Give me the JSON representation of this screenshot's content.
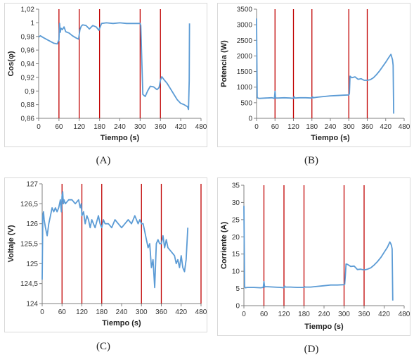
{
  "charts": [
    {
      "id": "A",
      "caption": "(A)",
      "chart_data": {
        "type": "line",
        "xlabel": "Tiempo (s)",
        "ylabel": "Cos(φ)",
        "xlim": [
          0,
          480
        ],
        "ylim": [
          0.86,
          1.02
        ],
        "xticks": [
          "0",
          "60",
          "120",
          "180",
          "240",
          "300",
          "360",
          "420",
          "480"
        ],
        "yticks": [
          "0,86",
          "0,88",
          "0,9",
          "0,92",
          "0,94",
          "0,96",
          "0,98",
          "1",
          "1,02"
        ],
        "grid": false,
        "line_color": "#5b9bd5",
        "marker_color": "#c00000",
        "vlines": [
          60,
          120,
          180,
          300,
          360
        ],
        "series": [
          {
            "x": [
              0,
              5,
              15,
              30,
              45,
              55,
              60,
              62,
              64,
              66,
              70,
              75,
              80,
              90,
              100,
              110,
              118,
              122,
              126,
              130,
              140,
              150,
              160,
              170,
              178,
              182,
              186,
              200,
              220,
              240,
              260,
              280,
              300,
              302,
              304,
              308,
              315,
              322,
              330,
              340,
              350,
              356,
              360,
              364,
              370,
              380,
              390,
              400,
              410,
              420,
              430,
              440,
              443,
              445,
              446
            ],
            "y": [
              0.979,
              0.981,
              0.978,
              0.974,
              0.97,
              0.969,
              0.975,
              0.999,
              0.986,
              0.992,
              0.99,
              0.994,
              0.987,
              0.985,
              0.981,
              0.978,
              0.976,
              0.99,
              0.995,
              0.997,
              0.996,
              0.991,
              0.996,
              0.994,
              0.989,
              0.994,
              0.999,
              1.0,
              0.999,
              1.0,
              0.999,
              0.999,
              0.999,
              0.996,
              0.96,
              0.895,
              0.892,
              0.9,
              0.907,
              0.906,
              0.902,
              0.905,
              0.916,
              0.921,
              0.917,
              0.911,
              0.903,
              0.895,
              0.887,
              0.882,
              0.88,
              0.877,
              0.873,
              0.915,
              0.999
            ]
          }
        ]
      }
    },
    {
      "id": "B",
      "caption": "(B)",
      "chart_data": {
        "type": "line",
        "xlabel": "Tiempo (s)",
        "ylabel": "Potencia (W)",
        "xlim": [
          0,
          480
        ],
        "ylim": [
          0,
          3500
        ],
        "xticks": [
          "0",
          "60",
          "120",
          "180",
          "240",
          "300",
          "360",
          "420",
          "480"
        ],
        "yticks": [
          "0",
          "500",
          "1000",
          "1500",
          "2000",
          "2500",
          "3000",
          "3500"
        ],
        "grid": false,
        "line_color": "#5b9bd5",
        "marker_color": "#c00000",
        "vlines": [
          60,
          120,
          180,
          300,
          360
        ],
        "series": [
          {
            "x": [
              0,
              2,
              4,
              10,
              30,
              50,
              58,
              60,
              62,
              70,
              90,
              110,
              120,
              122,
              124,
              140,
              160,
              180,
              182,
              184,
              200,
              220,
              240,
              260,
              280,
              300,
              302,
              304,
              310,
              320,
              330,
              340,
              350,
              360,
              370,
              380,
              390,
              400,
              410,
              420,
              430,
              437,
              440,
              442,
              444,
              446
            ],
            "y": [
              3200,
              680,
              650,
              640,
              650,
              660,
              640,
              870,
              650,
              650,
              660,
              650,
              640,
              700,
              650,
              660,
              660,
              650,
              690,
              660,
              680,
              700,
              720,
              730,
              740,
              750,
              790,
              1350,
              1300,
              1330,
              1250,
              1270,
              1220,
              1220,
              1240,
              1300,
              1400,
              1520,
              1660,
              1800,
              1950,
              2050,
              1950,
              1880,
              1700,
              150
            ]
          }
        ]
      }
    },
    {
      "id": "C",
      "caption": "(C)",
      "chart_data": {
        "type": "line",
        "xlabel": "Tiempo (s)",
        "ylabel": "Voltaje (V)",
        "xlim": [
          0,
          480
        ],
        "ylim": [
          124,
          127
        ],
        "xticks": [
          "0",
          "60",
          "120",
          "180",
          "240",
          "300",
          "360",
          "420",
          "480"
        ],
        "yticks": [
          "124",
          "124,5",
          "125",
          "125,5",
          "126",
          "126,5",
          "127"
        ],
        "grid": false,
        "line_color": "#5b9bd5",
        "marker_color": "#c00000",
        "vlines": [
          60,
          120,
          180,
          300,
          360,
          480
        ],
        "series": [
          {
            "x": [
              0,
              2,
              4,
              6,
              10,
              15,
              20,
              25,
              30,
              35,
              40,
              45,
              50,
              55,
              58,
              60,
              62,
              64,
              66,
              70,
              80,
              90,
              100,
              110,
              115,
              118,
              120,
              125,
              130,
              135,
              140,
              145,
              150,
              160,
              170,
              175,
              180,
              185,
              190,
              200,
              210,
              220,
              230,
              240,
              250,
              260,
              270,
              280,
              290,
              295,
              300,
              305,
              310,
              315,
              320,
              325,
              330,
              335,
              340,
              345,
              350,
              355,
              360,
              365,
              370,
              375,
              380,
              390,
              400,
              405,
              410,
              415,
              420,
              425,
              430,
              435,
              440
            ],
            "y": [
              124.6,
              126.2,
              126.3,
              126.1,
              125.9,
              125.7,
              126.0,
              126.2,
              126.4,
              126.3,
              126.4,
              126.3,
              126.4,
              126.6,
              126.3,
              126.7,
              126.8,
              126.5,
              126.6,
              126.5,
              126.6,
              126.6,
              126.5,
              126.6,
              126.4,
              126.5,
              126.2,
              126.3,
              126.0,
              126.2,
              126.1,
              125.9,
              126.1,
              125.9,
              126.2,
              126.0,
              125.9,
              126.1,
              126.0,
              126.0,
              125.9,
              126.1,
              126.0,
              125.9,
              126.0,
              126.1,
              126.0,
              126.2,
              126.0,
              126.1,
              126.0,
              126.0,
              125.8,
              125.6,
              125.4,
              125.5,
              124.9,
              125.1,
              124.4,
              125.5,
              125.6,
              125.5,
              125.5,
              125.7,
              125.4,
              125.6,
              125.4,
              125.3,
              125.2,
              125.0,
              125.1,
              124.9,
              125.2,
              124.9,
              124.8,
              125.1,
              125.9
            ]
          }
        ]
      }
    },
    {
      "id": "D",
      "caption": "(D)",
      "chart_data": {
        "type": "line",
        "xlabel": "Tiempo (s)",
        "ylabel": "Corriente (A)",
        "xlim": [
          0,
          480
        ],
        "ylim": [
          0,
          35
        ],
        "xticks": [
          "0",
          "60",
          "120",
          "180",
          "240",
          "300",
          "360",
          "420",
          "480"
        ],
        "yticks": [
          "0",
          "5",
          "10",
          "15",
          "20",
          "25",
          "30",
          "35"
        ],
        "grid": false,
        "line_color": "#5b9bd5",
        "marker_color": "#c00000",
        "vlines": [
          60,
          120,
          180,
          300,
          360
        ],
        "series": [
          {
            "x": [
              0,
              2,
              4,
              10,
              30,
              50,
              58,
              60,
              62,
              64,
              70,
              90,
              110,
              120,
              122,
              124,
              140,
              160,
              180,
              182,
              184,
              200,
              220,
              240,
              260,
              280,
              300,
              302,
              304,
              306,
              310,
              320,
              330,
              340,
              350,
              360,
              370,
              380,
              390,
              400,
              410,
              420,
              430,
              437,
              440,
              442,
              444,
              446
            ],
            "y": [
              29.0,
              5.5,
              5.2,
              5.3,
              5.3,
              5.2,
              5.3,
              7.0,
              5.4,
              5.5,
              5.5,
              5.4,
              5.3,
              5.2,
              5.7,
              5.4,
              5.4,
              5.3,
              5.3,
              5.5,
              5.4,
              5.4,
              5.6,
              5.8,
              6.0,
              6.0,
              6.1,
              6.2,
              9.0,
              12.1,
              12.0,
              11.4,
              11.5,
              10.5,
              10.6,
              10.4,
              10.6,
              11.0,
              11.8,
              12.8,
              14.0,
              15.5,
              17.0,
              18.5,
              18.0,
              17.5,
              16.5,
              1.5
            ]
          }
        ]
      }
    }
  ]
}
